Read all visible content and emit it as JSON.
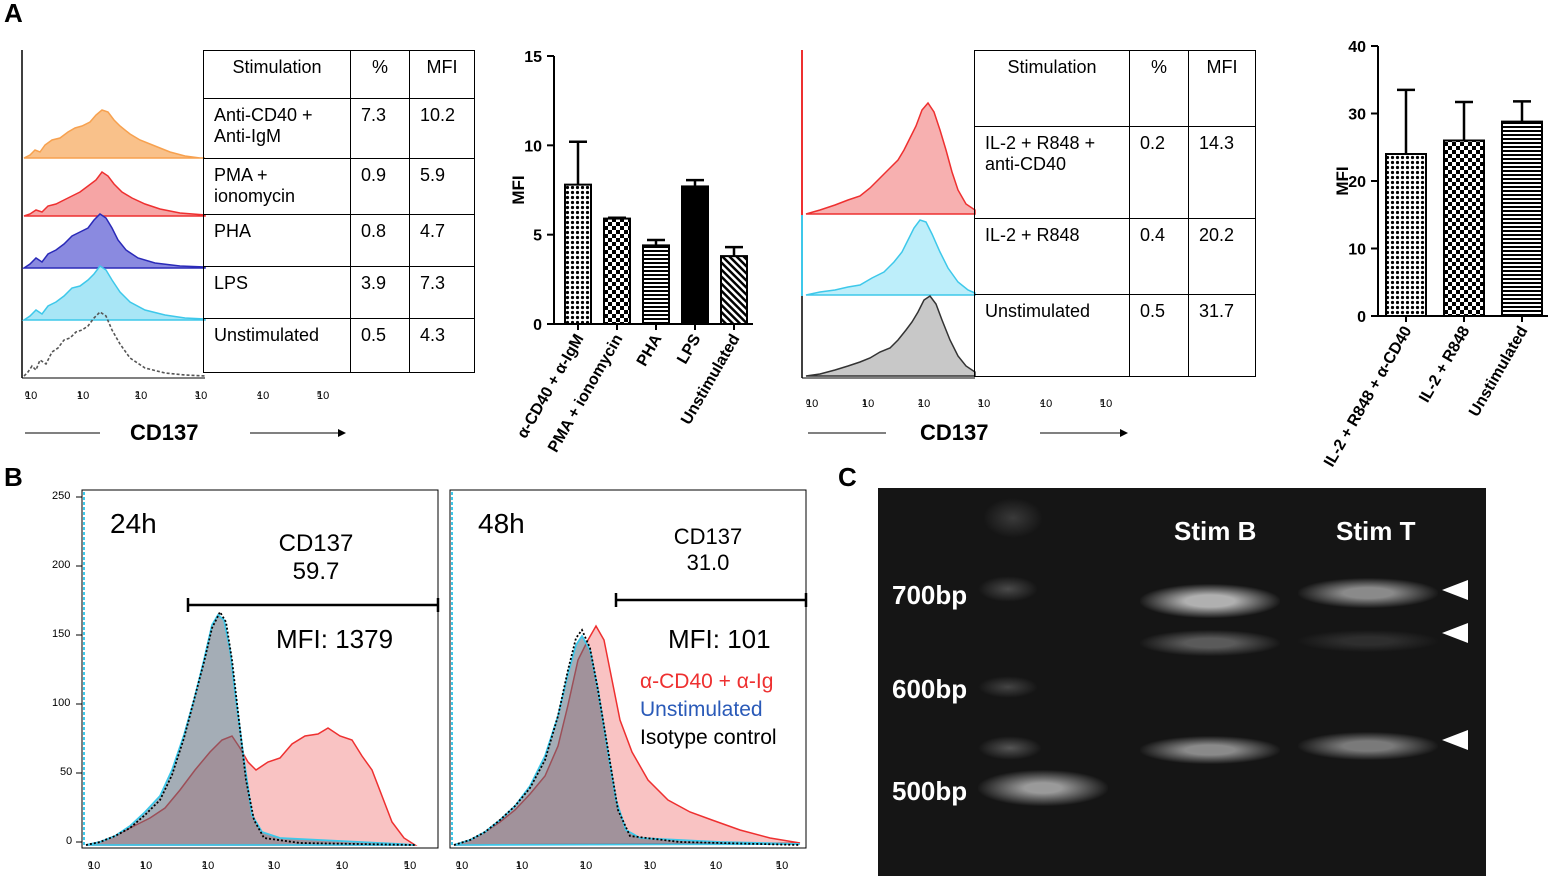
{
  "panel_labels": {
    "a": "A",
    "b": "B",
    "c": "C"
  },
  "colors": {
    "orange": "#f7a14f",
    "red": "#ee3030",
    "pink": "#f7a8a8",
    "blue": "#2a2ab8",
    "cyan": "#3ec8ea",
    "grey": "#555555",
    "gel_bg": "#151515"
  },
  "log_ticks": [
    "10",
    "10",
    "10",
    "10",
    "10",
    "10"
  ],
  "log_exps": [
    "0",
    "1",
    "2",
    "3",
    "4",
    "5"
  ],
  "panel_a1": {
    "xlabel": "CD137",
    "table_header": [
      "Stimulation",
      "%",
      "MFI"
    ],
    "rows": [
      {
        "stim_line1": "Anti-CD40 +",
        "stim_line2": "Anti-IgM",
        "pct": "7.3",
        "mfi": "10.2"
      },
      {
        "stim_line1": "PMA +",
        "stim_line2": "ionomycin",
        "pct": "0.9",
        "mfi": "5.9"
      },
      {
        "stim_line1": "PHA",
        "stim_line2": "",
        "pct": "0.8",
        "mfi": "4.7"
      },
      {
        "stim_line1": "LPS",
        "stim_line2": "",
        "pct": "3.9",
        "mfi": "7.3"
      },
      {
        "stim_line1": "Unstimulated",
        "stim_line2": "",
        "pct": "0.5",
        "mfi": "4.3"
      }
    ]
  },
  "panel_a2": {
    "xlabel": "CD137",
    "table_header": [
      "Stimulation",
      "%",
      "MFI"
    ],
    "rows": [
      {
        "stim_line1": "IL-2 + R848 +",
        "stim_line2": "anti-CD40",
        "pct": "0.2",
        "mfi": "14.3"
      },
      {
        "stim_line1": "IL-2 + R848",
        "stim_line2": "",
        "pct": "0.4",
        "mfi": "20.2"
      },
      {
        "stim_line1": "Unstimulated",
        "stim_line2": "",
        "pct": "0.5",
        "mfi": "31.7"
      }
    ]
  },
  "panel_b": {
    "left_time": "24h",
    "right_time": "48h",
    "left_gate_label": "CD137",
    "left_gate_value": "59.7",
    "right_gate_label": "CD137",
    "right_gate_value": "31.0",
    "left_mfi": "MFI: 1379",
    "right_mfi": "MFI: 101",
    "legend": [
      "α-CD40 + α-Ig",
      "Unstimulated",
      "Isotype control"
    ],
    "y_ticks": [
      "250",
      "200",
      "150",
      "100",
      "50",
      "0"
    ]
  },
  "panel_c": {
    "lane_labels": [
      "Stim B",
      "Stim T"
    ],
    "ladder_labels": [
      "700bp",
      "600bp",
      "500bp"
    ]
  },
  "chart_data": [
    {
      "type": "bar",
      "title": "",
      "xlabel": "",
      "ylabel": "MFI",
      "ylim": [
        0,
        15
      ],
      "yticks": [
        "0",
        "5",
        "10",
        "15"
      ],
      "categories": [
        "α-CD40 + α-IgM",
        "PMA + ionomycin",
        "PHA",
        "LPS",
        "Unstimulated"
      ],
      "values": [
        7.8,
        5.9,
        4.4,
        7.7,
        3.8
      ],
      "errors": [
        2.4,
        0.05,
        0.3,
        0.35,
        0.5
      ],
      "patterns": [
        "dots",
        "checker",
        "hlines",
        "black",
        "diag"
      ]
    },
    {
      "type": "bar",
      "title": "",
      "xlabel": "",
      "ylabel": "MFI",
      "ylim": [
        0,
        40
      ],
      "yticks": [
        "0",
        "10",
        "20",
        "30",
        "40"
      ],
      "categories": [
        "IL-2 + R848 + α-CD40",
        "IL-2 + R848",
        "Unstimulated"
      ],
      "values": [
        24,
        26,
        28.8
      ],
      "errors": [
        9.5,
        5.7,
        3.0
      ],
      "patterns": [
        "dots",
        "checker",
        "hlines"
      ]
    }
  ]
}
